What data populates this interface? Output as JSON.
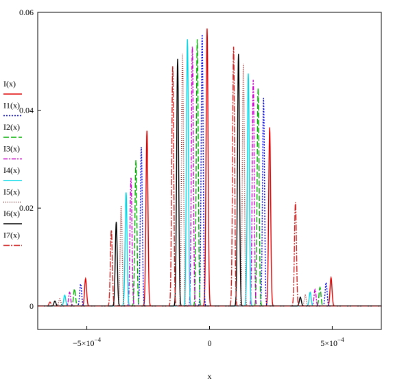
{
  "chart_data": {
    "type": "line",
    "title": "",
    "xlabel": "x",
    "ylabel": "",
    "xlim": [
      -0.0007,
      0.0007
    ],
    "ylim": [
      -0.0048,
      0.06
    ],
    "y_ticks": [
      {
        "value": 0,
        "label": "0"
      },
      {
        "value": 0.02,
        "label": "0.02"
      },
      {
        "value": 0.04,
        "label": "0.04"
      },
      {
        "value": 0.06,
        "label": "0.06"
      }
    ],
    "x_ticks": [
      {
        "value": -0.0005,
        "label": "−5×10",
        "exp": "−4"
      },
      {
        "value": 0,
        "label": "0",
        "exp": ""
      },
      {
        "value": 0.0005,
        "label": "5×10",
        "exp": "−4"
      }
    ],
    "legend_position": "left",
    "grid": false,
    "series": [
      {
        "name": "I(x)",
        "color": "#e00000",
        "dash": "",
        "offset": 0,
        "peaks": [
          [
            -0.000255,
            0.0358
          ],
          [
            -1e-05,
            0.0567
          ],
          [
            0.000245,
            0.0365
          ],
          [
            -0.000505,
            0.0056
          ],
          [
            0.000495,
            0.0058
          ]
        ]
      },
      {
        "name": "I1(x)",
        "color": "#0000e0",
        "dash": "2,2",
        "offset": 1.5e-05,
        "peaks": [
          [
            -0.000278,
            0.0325
          ],
          [
            -3e-05,
            0.0555
          ],
          [
            0.00022,
            0.0425
          ],
          [
            -0.000525,
            0.0045
          ],
          [
            0.000475,
            0.0048
          ]
        ]
      },
      {
        "name": "I2(x)",
        "color": "#00b000",
        "dash": "8,3",
        "offset": 3e-05,
        "peaks": [
          [
            -0.0003,
            0.0298
          ],
          [
            -5e-05,
            0.0545
          ],
          [
            0.000198,
            0.0445
          ],
          [
            -0.00055,
            0.0035
          ],
          [
            0.00045,
            0.0038
          ]
        ]
      },
      {
        "name": "I3(x)",
        "color": "#d000d0",
        "dash": "6,2,2,2",
        "offset": 4.5e-05,
        "peaks": [
          [
            -0.00032,
            0.0262
          ],
          [
            -7e-05,
            0.053
          ],
          [
            0.000178,
            0.0462
          ],
          [
            -0.00057,
            0.0028
          ],
          [
            0.00043,
            0.0034
          ]
        ]
      },
      {
        "name": "I4(x)",
        "color": "#00d8e8",
        "dash": "",
        "offset": 6e-05,
        "peaks": [
          [
            -0.00034,
            0.0232
          ],
          [
            -9e-05,
            0.0545
          ],
          [
            0.000158,
            0.0475
          ],
          [
            -0.00059,
            0.0022
          ],
          [
            0.00041,
            0.0028
          ]
        ]
      },
      {
        "name": "I5(x)",
        "color": "#8b1a1a",
        "dash": "1,2",
        "offset": 7.5e-05,
        "peaks": [
          [
            -0.00036,
            0.0205
          ],
          [
            -0.00011,
            0.0515
          ],
          [
            0.000138,
            0.0495
          ],
          [
            -0.00061,
            0.0015
          ],
          [
            0.00039,
            0.0022
          ]
        ]
      },
      {
        "name": "I6(x)",
        "color": "#000000",
        "dash": "",
        "offset": 9e-05,
        "peaks": [
          [
            -0.00038,
            0.0172
          ],
          [
            -0.00013,
            0.0505
          ],
          [
            0.000118,
            0.0515
          ],
          [
            -0.00063,
            0.001
          ],
          [
            0.00037,
            0.0018
          ]
        ]
      },
      {
        "name": "I7(x)",
        "color": "#d02020",
        "dash": "9,2,2,2",
        "offset": 0.000105,
        "peaks": [
          [
            -0.0004,
            0.0155
          ],
          [
            -0.00015,
            0.049
          ],
          [
            9.8e-05,
            0.053
          ],
          [
            -0.00065,
            0.0008
          ],
          [
            0.00035,
            0.0212
          ]
        ]
      }
    ]
  }
}
